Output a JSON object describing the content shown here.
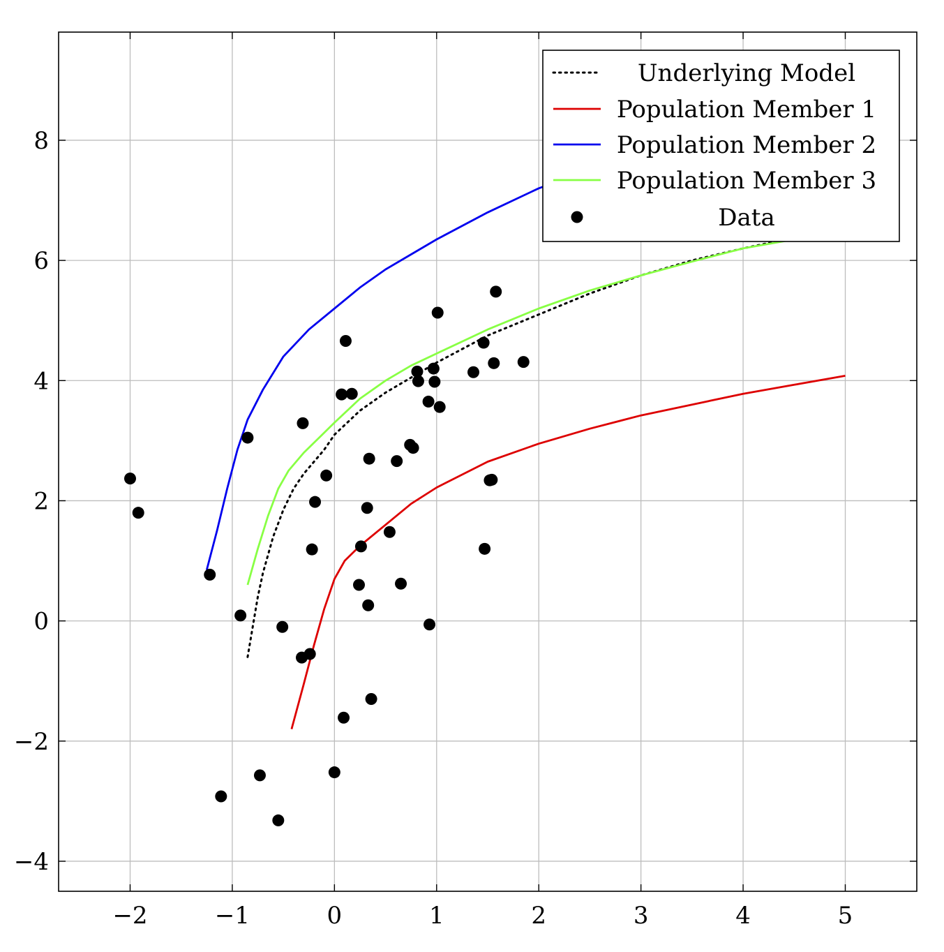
{
  "chart_data": {
    "type": "line",
    "title": "",
    "xlabel": "",
    "ylabel": "",
    "xlim": [
      -2.7,
      5.7
    ],
    "ylim": [
      -4.5,
      9.8
    ],
    "xticks": [
      -2,
      -1,
      0,
      1,
      2,
      3,
      4,
      5
    ],
    "yticks": [
      -4,
      -2,
      0,
      2,
      4,
      6,
      8
    ],
    "xtick_labels": [
      "−2",
      "−1",
      "0",
      "1",
      "2",
      "3",
      "4",
      "5"
    ],
    "ytick_labels": [
      "−4",
      "−2",
      "0",
      "2",
      "4",
      "6",
      "8"
    ],
    "grid": true,
    "legend_position": "top-right",
    "series": [
      {
        "name": "Underlying Model",
        "style": "dotted",
        "color": "#000000",
        "points": [
          [
            -0.85,
            -0.6
          ],
          [
            -0.8,
            -0.1
          ],
          [
            -0.75,
            0.4
          ],
          [
            -0.7,
            0.8
          ],
          [
            -0.6,
            1.4
          ],
          [
            -0.5,
            1.85
          ],
          [
            -0.4,
            2.2
          ],
          [
            -0.3,
            2.45
          ],
          [
            -0.2,
            2.65
          ],
          [
            -0.1,
            2.85
          ],
          [
            0,
            3.1
          ],
          [
            0.25,
            3.5
          ],
          [
            0.5,
            3.8
          ],
          [
            0.75,
            4.05
          ],
          [
            1,
            4.3
          ],
          [
            1.5,
            4.75
          ],
          [
            2,
            5.1
          ],
          [
            2.5,
            5.45
          ],
          [
            3,
            5.75
          ],
          [
            3.5,
            6.0
          ],
          [
            4,
            6.2
          ],
          [
            4.5,
            6.38
          ],
          [
            5,
            6.55
          ]
        ]
      },
      {
        "name": "Population Member 1",
        "style": "solid",
        "color": "#dd0000",
        "points": [
          [
            -0.42,
            -1.8
          ],
          [
            -0.3,
            -1.05
          ],
          [
            -0.2,
            -0.4
          ],
          [
            -0.1,
            0.2
          ],
          [
            0,
            0.7
          ],
          [
            0.1,
            1.0
          ],
          [
            0.25,
            1.25
          ],
          [
            0.5,
            1.6
          ],
          [
            0.75,
            1.95
          ],
          [
            1,
            2.22
          ],
          [
            1.5,
            2.65
          ],
          [
            2,
            2.95
          ],
          [
            2.5,
            3.2
          ],
          [
            3,
            3.42
          ],
          [
            3.5,
            3.6
          ],
          [
            4,
            3.78
          ],
          [
            4.5,
            3.93
          ],
          [
            5,
            4.08
          ]
        ]
      },
      {
        "name": "Population Member 2",
        "style": "solid",
        "color": "#0000ee",
        "points": [
          [
            -1.25,
            0.85
          ],
          [
            -1.15,
            1.5
          ],
          [
            -1.05,
            2.2
          ],
          [
            -0.95,
            2.85
          ],
          [
            -0.85,
            3.35
          ],
          [
            -0.7,
            3.85
          ],
          [
            -0.5,
            4.4
          ],
          [
            -0.25,
            4.85
          ],
          [
            0,
            5.2
          ],
          [
            0.25,
            5.55
          ],
          [
            0.5,
            5.85
          ],
          [
            0.75,
            6.1
          ],
          [
            1,
            6.35
          ],
          [
            1.5,
            6.8
          ],
          [
            2,
            7.2
          ],
          [
            2.4,
            7.45
          ]
        ]
      },
      {
        "name": "Population Member 3",
        "style": "solid",
        "color": "#88ff44",
        "points": [
          [
            -0.85,
            0.6
          ],
          [
            -0.75,
            1.2
          ],
          [
            -0.65,
            1.75
          ],
          [
            -0.55,
            2.2
          ],
          [
            -0.45,
            2.5
          ],
          [
            -0.3,
            2.8
          ],
          [
            -0.15,
            3.05
          ],
          [
            0,
            3.3
          ],
          [
            0.25,
            3.7
          ],
          [
            0.5,
            4.0
          ],
          [
            0.75,
            4.25
          ],
          [
            1,
            4.45
          ],
          [
            1.5,
            4.85
          ],
          [
            2,
            5.2
          ],
          [
            2.5,
            5.5
          ],
          [
            3,
            5.75
          ],
          [
            3.5,
            5.98
          ],
          [
            4,
            6.2
          ],
          [
            4.5,
            6.35
          ],
          [
            4.75,
            6.45
          ]
        ]
      },
      {
        "name": "Data",
        "style": "markers",
        "color": "#000000",
        "points": [
          [
            -2.0,
            2.37
          ],
          [
            -1.92,
            1.8
          ],
          [
            -1.22,
            0.77
          ],
          [
            -1.11,
            -2.92
          ],
          [
            -0.92,
            0.09
          ],
          [
            -0.85,
            3.05
          ],
          [
            -0.73,
            -2.57
          ],
          [
            -0.55,
            -3.32
          ],
          [
            -0.51,
            -0.1
          ],
          [
            -0.32,
            -0.61
          ],
          [
            -0.31,
            3.29
          ],
          [
            -0.24,
            -0.55
          ],
          [
            -0.22,
            1.19
          ],
          [
            -0.19,
            1.98
          ],
          [
            -0.08,
            2.42
          ],
          [
            0.0,
            -2.52
          ],
          [
            0.07,
            3.77
          ],
          [
            0.09,
            -1.61
          ],
          [
            0.11,
            4.66
          ],
          [
            0.17,
            3.78
          ],
          [
            0.24,
            0.6
          ],
          [
            0.26,
            1.24
          ],
          [
            0.32,
            1.88
          ],
          [
            0.33,
            0.26
          ],
          [
            0.34,
            2.7
          ],
          [
            0.36,
            -1.3
          ],
          [
            0.54,
            1.48
          ],
          [
            0.61,
            2.66
          ],
          [
            0.65,
            0.62
          ],
          [
            0.74,
            2.93
          ],
          [
            0.77,
            2.88
          ],
          [
            0.81,
            4.15
          ],
          [
            0.82,
            3.99
          ],
          [
            0.92,
            3.65
          ],
          [
            0.93,
            -0.06
          ],
          [
            0.97,
            4.2
          ],
          [
            0.98,
            3.98
          ],
          [
            1.01,
            5.13
          ],
          [
            1.03,
            3.56
          ],
          [
            1.36,
            4.14
          ],
          [
            1.46,
            4.63
          ],
          [
            1.47,
            1.2
          ],
          [
            1.52,
            2.34
          ],
          [
            1.54,
            2.35
          ],
          [
            1.56,
            4.29
          ],
          [
            1.58,
            5.48
          ],
          [
            1.85,
            4.31
          ]
        ]
      }
    ]
  }
}
